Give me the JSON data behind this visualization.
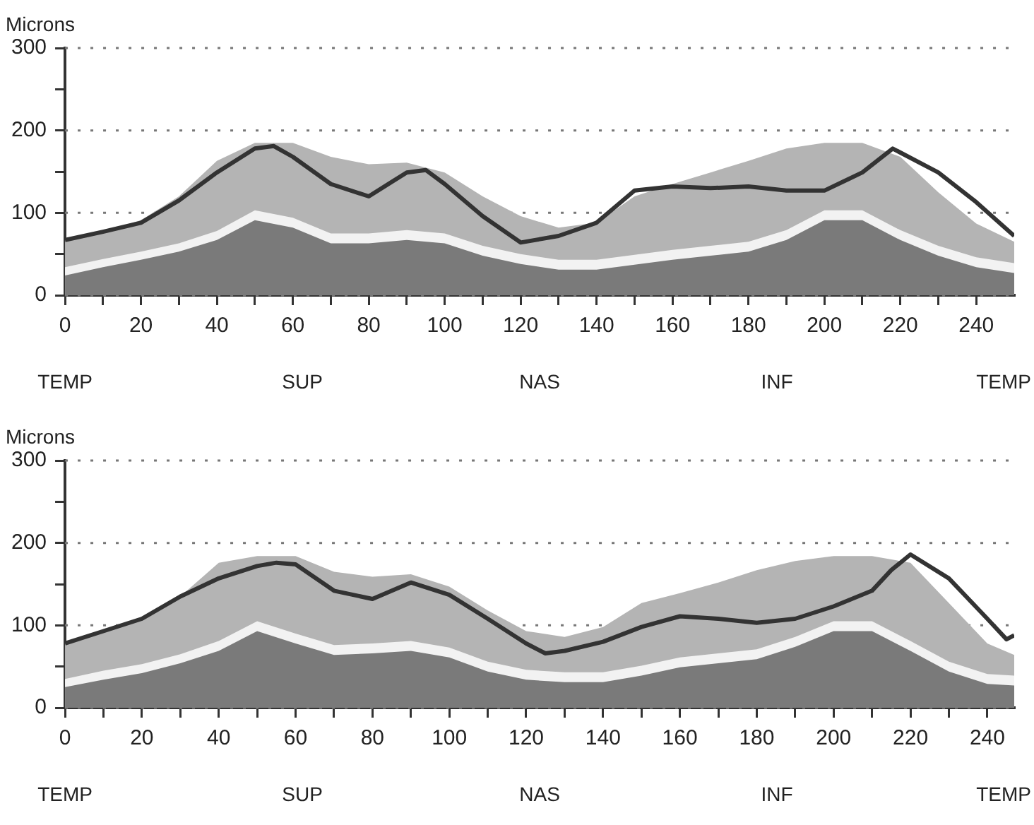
{
  "chart_data": [
    {
      "type": "area",
      "ylabel": "Microns",
      "xlim": [
        0,
        250
      ],
      "ylim": [
        0,
        300
      ],
      "xticks": [
        0,
        {
          "value": 10,
          "label": null
        },
        20,
        {
          "value": 30,
          "label": null
        },
        40,
        {
          "value": 50,
          "label": null
        },
        60,
        {
          "value": 70,
          "label": null
        },
        80,
        {
          "value": 90,
          "label": null
        },
        100,
        {
          "value": 110,
          "label": null
        },
        120,
        {
          "value": 130,
          "label": null
        },
        140,
        {
          "value": 150,
          "label": null
        },
        160,
        {
          "value": 170,
          "label": null
        },
        180,
        {
          "value": 190,
          "label": null
        },
        200,
        {
          "value": 210,
          "label": null
        },
        220,
        {
          "value": 230,
          "label": null
        },
        240
      ],
      "yticks": [
        0,
        {
          "value": 50,
          "label": null
        },
        100,
        {
          "value": 150,
          "label": null
        },
        200,
        {
          "value": 250,
          "label": null
        },
        300
      ],
      "annotations": [
        "TEMP",
        "SUP",
        "NAS",
        "INF",
        "TEMP"
      ],
      "grid": "y",
      "legend": false,
      "marker": "none",
      "x": [
        0,
        10,
        20,
        30,
        40,
        50,
        60,
        70,
        80,
        90,
        100,
        110,
        120,
        130,
        140,
        150,
        160,
        170,
        180,
        190,
        200,
        210,
        220,
        230,
        240,
        250
      ],
      "series": [
        {
          "color": "#b4b4b4",
          "values": [
            68,
            77,
            91,
            120,
            163,
            185,
            185,
            168,
            159,
            161,
            149,
            120,
            96,
            82,
            88,
            120,
            135,
            149,
            163,
            178,
            185,
            185,
            168,
            125,
            87,
            65
          ]
        },
        {
          "color": "#f2f2f2",
          "values": [
            34,
            44,
            53,
            63,
            78,
            103,
            94,
            75,
            75,
            79,
            75,
            60,
            50,
            43,
            43,
            49,
            55,
            60,
            65,
            79,
            103,
            103,
            79,
            60,
            46,
            39
          ]
        },
        {
          "color": "#7a7a7a",
          "values": [
            24,
            34,
            43,
            53,
            67,
            91,
            82,
            63,
            63,
            67,
            63,
            48,
            38,
            31,
            31,
            37,
            43,
            48,
            53,
            67,
            91,
            91,
            67,
            48,
            34,
            27
          ]
        },
        {
          "type": "line",
          "color": "#333333",
          "x": [
            0,
            10,
            20,
            30,
            40,
            50,
            55,
            60,
            70,
            80,
            90,
            95,
            100,
            110,
            120,
            130,
            140,
            150,
            160,
            170,
            180,
            190,
            200,
            210,
            218,
            230,
            240,
            250
          ],
          "values": [
            67,
            77,
            88,
            115,
            149,
            178,
            181,
            168,
            135,
            120,
            149,
            152,
            135,
            96,
            64,
            72,
            88,
            127,
            132,
            130,
            132,
            127,
            127,
            149,
            178,
            149,
            113,
            72
          ]
        }
      ]
    },
    {
      "type": "area",
      "ylabel": "Microns",
      "xlim": [
        0,
        247
      ],
      "ylim": [
        0,
        300
      ],
      "xticks": [
        0,
        {
          "value": 10,
          "label": null
        },
        20,
        {
          "value": 30,
          "label": null
        },
        40,
        {
          "value": 50,
          "label": null
        },
        60,
        {
          "value": 70,
          "label": null
        },
        80,
        {
          "value": 90,
          "label": null
        },
        100,
        {
          "value": 110,
          "label": null
        },
        120,
        {
          "value": 130,
          "label": null
        },
        140,
        {
          "value": 150,
          "label": null
        },
        160,
        {
          "value": 170,
          "label": null
        },
        180,
        {
          "value": 190,
          "label": null
        },
        200,
        {
          "value": 210,
          "label": null
        },
        220,
        {
          "value": 230,
          "label": null
        },
        240
      ],
      "yticks": [
        0,
        {
          "value": 50,
          "label": null
        },
        100,
        {
          "value": 150,
          "label": null
        },
        200,
        {
          "value": 250,
          "label": null
        },
        300
      ],
      "annotations": [
        "TEMP",
        "SUP",
        "NAS",
        "INF",
        "TEMP"
      ],
      "grid": "y",
      "legend": false,
      "marker": "none",
      "x": [
        0,
        10,
        20,
        30,
        40,
        50,
        60,
        70,
        80,
        90,
        100,
        110,
        120,
        130,
        140,
        150,
        160,
        170,
        180,
        190,
        200,
        210,
        220,
        230,
        240,
        247
      ],
      "series": [
        {
          "color": "#b4b4b4",
          "values": [
            80,
            93,
            108,
            135,
            176,
            184,
            184,
            165,
            159,
            162,
            147,
            118,
            93,
            86,
            98,
            127,
            139,
            152,
            167,
            178,
            184,
            184,
            176,
            127,
            78,
            64
          ]
        },
        {
          "color": "#f2f2f2",
          "values": [
            35,
            45,
            53,
            65,
            81,
            105,
            90,
            76,
            78,
            81,
            73,
            56,
            46,
            43,
            43,
            51,
            61,
            66,
            71,
            86,
            105,
            105,
            81,
            56,
            41,
            39
          ]
        },
        {
          "color": "#7a7a7a",
          "values": [
            25,
            34,
            42,
            54,
            69,
            93,
            78,
            64,
            66,
            69,
            61,
            44,
            34,
            31,
            31,
            39,
            49,
            54,
            59,
            74,
            93,
            93,
            69,
            44,
            29,
            27
          ]
        },
        {
          "type": "line",
          "color": "#333333",
          "x": [
            0,
            10,
            20,
            30,
            40,
            50,
            55,
            60,
            70,
            80,
            90,
            100,
            110,
            120,
            125,
            130,
            140,
            150,
            160,
            170,
            180,
            190,
            200,
            210,
            215,
            220,
            230,
            240,
            245,
            247
          ],
          "values": [
            78,
            93,
            108,
            135,
            157,
            172,
            176,
            174,
            142,
            132,
            152,
            137,
            108,
            78,
            66,
            69,
            80,
            98,
            111,
            108,
            103,
            108,
            123,
            142,
            167,
            186,
            157,
            108,
            83,
            88
          ]
        }
      ]
    }
  ]
}
